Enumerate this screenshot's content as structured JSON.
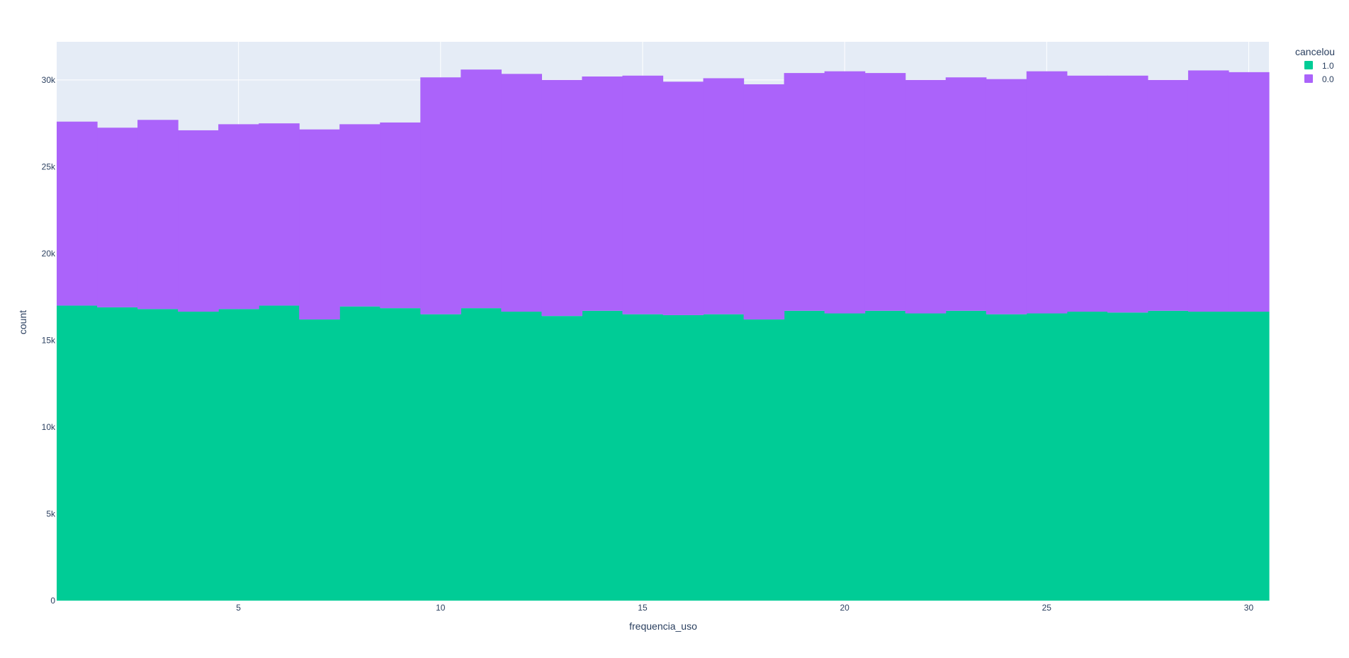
{
  "chart_data": {
    "type": "bar",
    "barmode": "stack",
    "title": "",
    "xlabel": "frequencia_uso",
    "ylabel": "count",
    "x": [
      1,
      2,
      3,
      4,
      5,
      6,
      7,
      8,
      9,
      10,
      11,
      12,
      13,
      14,
      15,
      16,
      17,
      18,
      19,
      20,
      21,
      22,
      23,
      24,
      25,
      26,
      27,
      28,
      29,
      30
    ],
    "xlim": [
      0.5,
      30.5
    ],
    "ylim": [
      0,
      32200
    ],
    "xticks": [
      5,
      10,
      15,
      20,
      25,
      30
    ],
    "xtick_labels": [
      "5",
      "10",
      "15",
      "20",
      "25",
      "30"
    ],
    "yticks": [
      0,
      5000,
      10000,
      15000,
      20000,
      25000,
      30000
    ],
    "ytick_labels": [
      "0",
      "5k",
      "10k",
      "15k",
      "20k",
      "25k",
      "30k"
    ],
    "grid": true,
    "legend": {
      "title": "cancelou",
      "placement": "top-right",
      "items": [
        {
          "label": "1.0",
          "color": "#00cc96"
        },
        {
          "label": "0.0",
          "color": "#ab63fa"
        }
      ]
    },
    "series": [
      {
        "name": "1.0",
        "color": "#00cc96",
        "values": [
          17000,
          16900,
          16800,
          16650,
          16800,
          17000,
          16200,
          16950,
          16850,
          16500,
          16850,
          16650,
          16400,
          16700,
          16500,
          16450,
          16500,
          16200,
          16700,
          16550,
          16700,
          16550,
          16700,
          16500,
          16550,
          16650,
          16600,
          16700,
          16650,
          16650
        ]
      },
      {
        "name": "0.0",
        "color": "#ab63fa",
        "values": [
          10600,
          10350,
          10900,
          10450,
          10650,
          10500,
          10950,
          10500,
          10700,
          13650,
          13750,
          13700,
          13600,
          13500,
          13750,
          13450,
          13600,
          13550,
          13700,
          13950,
          13700,
          13450,
          13450,
          13550,
          13950,
          13600,
          13650,
          13300,
          13900,
          13800
        ]
      }
    ]
  },
  "colors": {
    "plot_bg": "#e5ecf6",
    "grid": "#ffffff",
    "text": "#2a3f5f"
  }
}
